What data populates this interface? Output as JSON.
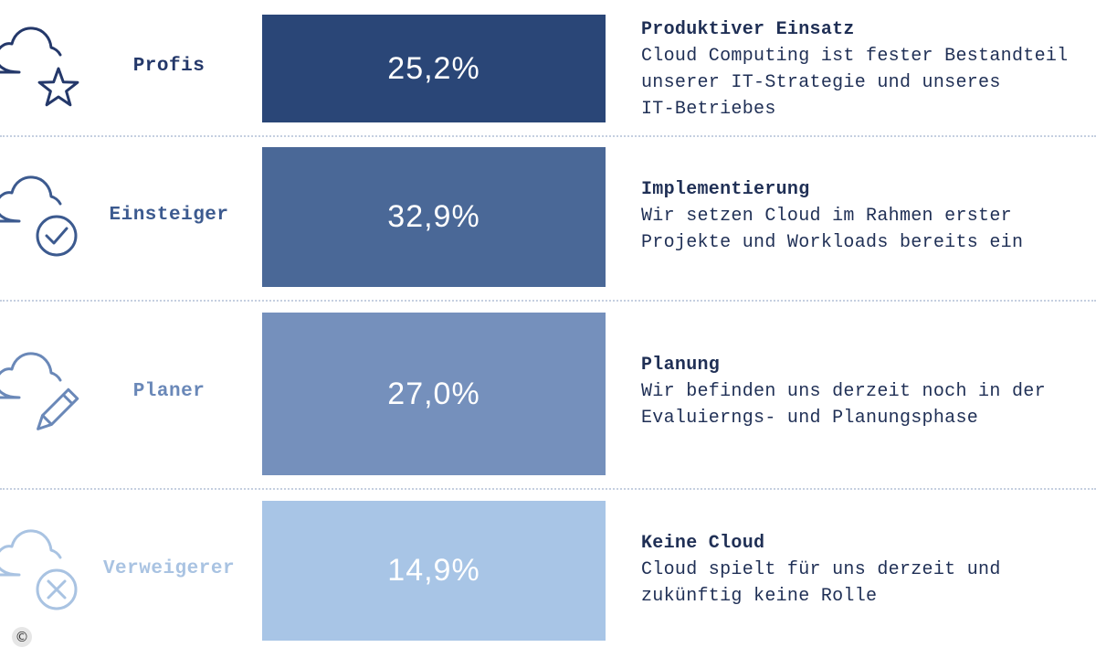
{
  "chart_data": {
    "type": "bar",
    "title": "",
    "categories": [
      "Profis",
      "Einsteiger",
      "Planer",
      "Verweigerer"
    ],
    "values": [
      25.2,
      32.9,
      27.0,
      14.9
    ],
    "value_labels": [
      "25,2%",
      "32,9%",
      "27,0%",
      "14,9%"
    ],
    "unit": "%",
    "colors": [
      "#2a4677",
      "#4a6897",
      "#7590bc",
      "#a8c5e6"
    ],
    "label_colors": [
      "#24386a",
      "#3c5a8f",
      "#6a88b8",
      "#a9c3e2"
    ],
    "descriptions": [
      {
        "title": "Produktiver Einsatz",
        "lines": [
          "Cloud Computing ist fester Bestandteil",
          "unserer IT-Strategie und unseres",
          "IT-Betriebes"
        ]
      },
      {
        "title": "Implementierung",
        "lines": [
          "Wir setzen Cloud im Rahmen erster",
          "Projekte und Workloads bereits ein"
        ]
      },
      {
        "title": "Planung",
        "lines": [
          "Wir befinden uns derzeit noch in der",
          "Evaluierngs- und Planungsphase"
        ]
      },
      {
        "title": "Keine Cloud",
        "lines": [
          "Cloud spielt für uns derzeit und",
          "zukünftig keine Rolle"
        ]
      }
    ],
    "icons": [
      "cloud-star-icon",
      "cloud-check-icon",
      "cloud-pencil-icon",
      "cloud-x-icon"
    ]
  },
  "footer": {
    "copyright_symbol": "©"
  }
}
